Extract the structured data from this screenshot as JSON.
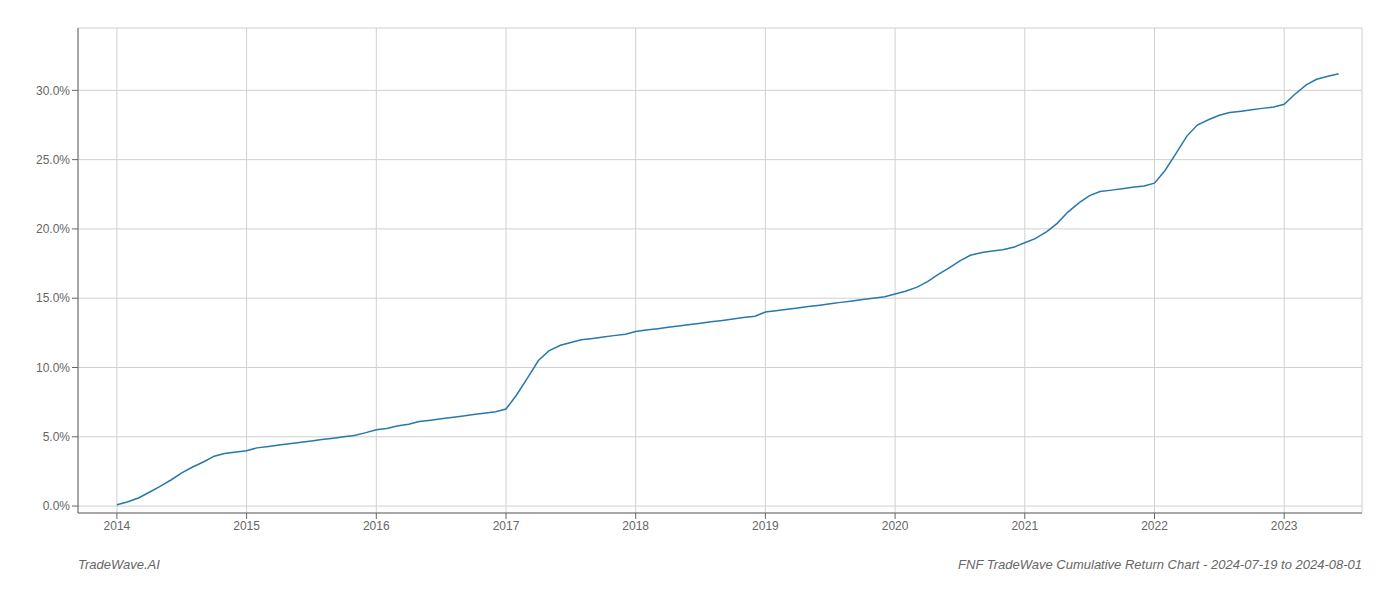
{
  "chart_data": {
    "type": "line",
    "title": "FNF TradeWave Cumulative Return Chart - 2024-07-19 to 2024-08-01",
    "annotations": [
      "TradeWave.AI"
    ],
    "color": "#2878a8",
    "grid": true,
    "x": [
      2014.0,
      2014.08,
      2014.17,
      2014.25,
      2014.33,
      2014.42,
      2014.5,
      2014.58,
      2014.67,
      2014.75,
      2014.83,
      2014.92,
      2015.0,
      2015.08,
      2015.17,
      2015.25,
      2015.33,
      2015.42,
      2015.5,
      2015.58,
      2015.67,
      2015.75,
      2015.83,
      2015.92,
      2016.0,
      2016.08,
      2016.17,
      2016.25,
      2016.33,
      2016.42,
      2016.5,
      2016.58,
      2016.67,
      2016.75,
      2016.83,
      2016.92,
      2017.0,
      2017.08,
      2017.17,
      2017.25,
      2017.33,
      2017.42,
      2017.5,
      2017.58,
      2017.67,
      2017.75,
      2017.83,
      2017.92,
      2018.0,
      2018.08,
      2018.17,
      2018.25,
      2018.33,
      2018.42,
      2018.5,
      2018.58,
      2018.67,
      2018.75,
      2018.83,
      2018.92,
      2019.0,
      2019.08,
      2019.17,
      2019.25,
      2019.33,
      2019.42,
      2019.5,
      2019.58,
      2019.67,
      2019.75,
      2019.83,
      2019.92,
      2020.0,
      2020.08,
      2020.17,
      2020.25,
      2020.33,
      2020.42,
      2020.5,
      2020.58,
      2020.67,
      2020.75,
      2020.83,
      2020.92,
      2021.0,
      2021.08,
      2021.17,
      2021.25,
      2021.33,
      2021.42,
      2021.5,
      2021.58,
      2021.67,
      2021.75,
      2021.83,
      2021.92,
      2022.0,
      2022.08,
      2022.17,
      2022.25,
      2022.33,
      2022.42,
      2022.5,
      2022.58,
      2022.67,
      2022.75,
      2022.83,
      2022.92,
      2023.0,
      2023.08,
      2023.17,
      2023.25,
      2023.33,
      2023.42
    ],
    "values": [
      0.001,
      0.003,
      0.006,
      0.01,
      0.014,
      0.019,
      0.024,
      0.028,
      0.032,
      0.036,
      0.038,
      0.039,
      0.04,
      0.042,
      0.043,
      0.044,
      0.045,
      0.046,
      0.047,
      0.048,
      0.049,
      0.05,
      0.051,
      0.053,
      0.055,
      0.056,
      0.058,
      0.059,
      0.061,
      0.062,
      0.063,
      0.064,
      0.065,
      0.066,
      0.067,
      0.068,
      0.07,
      0.08,
      0.093,
      0.105,
      0.112,
      0.116,
      0.118,
      0.12,
      0.121,
      0.122,
      0.123,
      0.124,
      0.126,
      0.127,
      0.128,
      0.129,
      0.13,
      0.131,
      0.132,
      0.133,
      0.134,
      0.135,
      0.136,
      0.137,
      0.14,
      0.141,
      0.142,
      0.143,
      0.144,
      0.145,
      0.146,
      0.147,
      0.148,
      0.149,
      0.15,
      0.151,
      0.153,
      0.155,
      0.158,
      0.162,
      0.167,
      0.172,
      0.177,
      0.181,
      0.183,
      0.184,
      0.185,
      0.187,
      0.19,
      0.193,
      0.198,
      0.204,
      0.212,
      0.219,
      0.224,
      0.227,
      0.228,
      0.229,
      0.23,
      0.231,
      0.233,
      0.242,
      0.255,
      0.267,
      0.275,
      0.279,
      0.282,
      0.284,
      0.285,
      0.286,
      0.287,
      0.288,
      0.29,
      0.297,
      0.304,
      0.308,
      0.31,
      0.312
    ],
    "xlim": [
      2013.7,
      2023.6
    ],
    "xticks": [
      2014,
      2015,
      2016,
      2017,
      2018,
      2019,
      2020,
      2021,
      2022,
      2023
    ],
    "ylim": [
      -0.005,
      0.345
    ],
    "yticks": [
      {
        "value": 0.0,
        "label": "0.0%"
      },
      {
        "value": 0.05,
        "label": "5.0%"
      },
      {
        "value": 0.1,
        "label": "10.0%"
      },
      {
        "value": 0.15,
        "label": "15.0%"
      },
      {
        "value": 0.2,
        "label": "20.0%"
      },
      {
        "value": 0.25,
        "label": "25.0%"
      },
      {
        "value": 0.3,
        "label": "30.0%"
      }
    ]
  }
}
